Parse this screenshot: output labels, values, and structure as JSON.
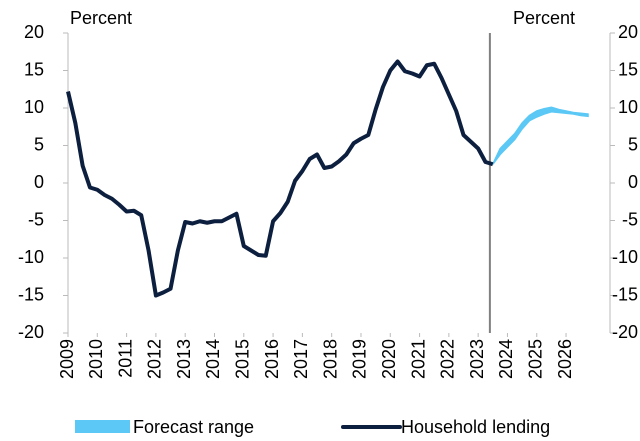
{
  "chart_data": {
    "type": "line",
    "y_label": "Percent",
    "y2_label": "Percent",
    "xlim": [
      2009,
      2027.5
    ],
    "xticks": [
      2009,
      2010,
      2011,
      2012,
      2013,
      2014,
      2015,
      2016,
      2017,
      2018,
      2019,
      2020,
      2021,
      2022,
      2023,
      2024,
      2025,
      2026
    ],
    "ylim": [
      -20,
      20
    ],
    "yticks": [
      -20,
      -15,
      -10,
      -5,
      0,
      5,
      10,
      15,
      20
    ],
    "y2lim": [
      -20,
      20
    ],
    "y2ticks": [
      -20,
      -15,
      -10,
      -5,
      0,
      5,
      10,
      15,
      20
    ],
    "forecast_start": 2023.4,
    "forecast_line_color": "#808080",
    "legend": "bottom",
    "series": [
      {
        "name": "Forecast range",
        "color": "#5bc8f5",
        "x": [
          2023.5,
          2023.75,
          2024,
          2024.25,
          2024.5,
          2024.75,
          2025,
          2025.25,
          2025.5,
          2025.75,
          2026,
          2026.25,
          2026.5,
          2026.75
        ],
        "low": [
          2.5,
          3.8,
          4.8,
          5.8,
          7.2,
          8.3,
          8.8,
          9.2,
          9.5,
          9.4,
          9.3,
          9.2,
          9.0,
          8.9
        ],
        "high": [
          2.5,
          4.6,
          5.6,
          6.6,
          8.0,
          9.0,
          9.6,
          9.9,
          10.1,
          9.8,
          9.6,
          9.4,
          9.3,
          9.2
        ]
      },
      {
        "name": "Household lending",
        "color": "#0d1f3f",
        "x": [
          2009,
          2009.25,
          2009.5,
          2009.75,
          2010,
          2010.25,
          2010.5,
          2010.75,
          2011,
          2011.25,
          2011.5,
          2011.75,
          2012,
          2012.25,
          2012.5,
          2012.75,
          2013,
          2013.25,
          2013.5,
          2013.75,
          2014,
          2014.25,
          2014.5,
          2014.75,
          2015,
          2015.25,
          2015.5,
          2015.75,
          2016,
          2016.25,
          2016.5,
          2016.75,
          2017,
          2017.25,
          2017.5,
          2017.75,
          2018,
          2018.25,
          2018.5,
          2018.75,
          2019,
          2019.25,
          2019.5,
          2019.75,
          2020,
          2020.25,
          2020.5,
          2020.75,
          2021,
          2021.25,
          2021.5,
          2021.75,
          2022,
          2022.25,
          2022.5,
          2022.75,
          2023,
          2023.25,
          2023.5
        ],
        "values": [
          12.2,
          8,
          2.3,
          -0.6,
          -0.9,
          -1.6,
          -2.1,
          -2.9,
          -3.8,
          -3.7,
          -4.3,
          -9,
          -15,
          -14.6,
          -14.1,
          -9,
          -5.2,
          -5.4,
          -5.1,
          -5.3,
          -5.1,
          -5.1,
          -4.6,
          -4.1,
          -8.4,
          -9,
          -9.6,
          -9.7,
          -5.1,
          -4,
          -2.5,
          0.3,
          1.6,
          3.2,
          3.8,
          2,
          2.2,
          2.9,
          3.8,
          5.3,
          5.9,
          6.4,
          9.8,
          12.8,
          15,
          16.2,
          14.9,
          14.6,
          14.2,
          15.7,
          15.9,
          14,
          11.8,
          9.6,
          6.4,
          5.5,
          4.6,
          2.8,
          2.5
        ]
      }
    ]
  }
}
